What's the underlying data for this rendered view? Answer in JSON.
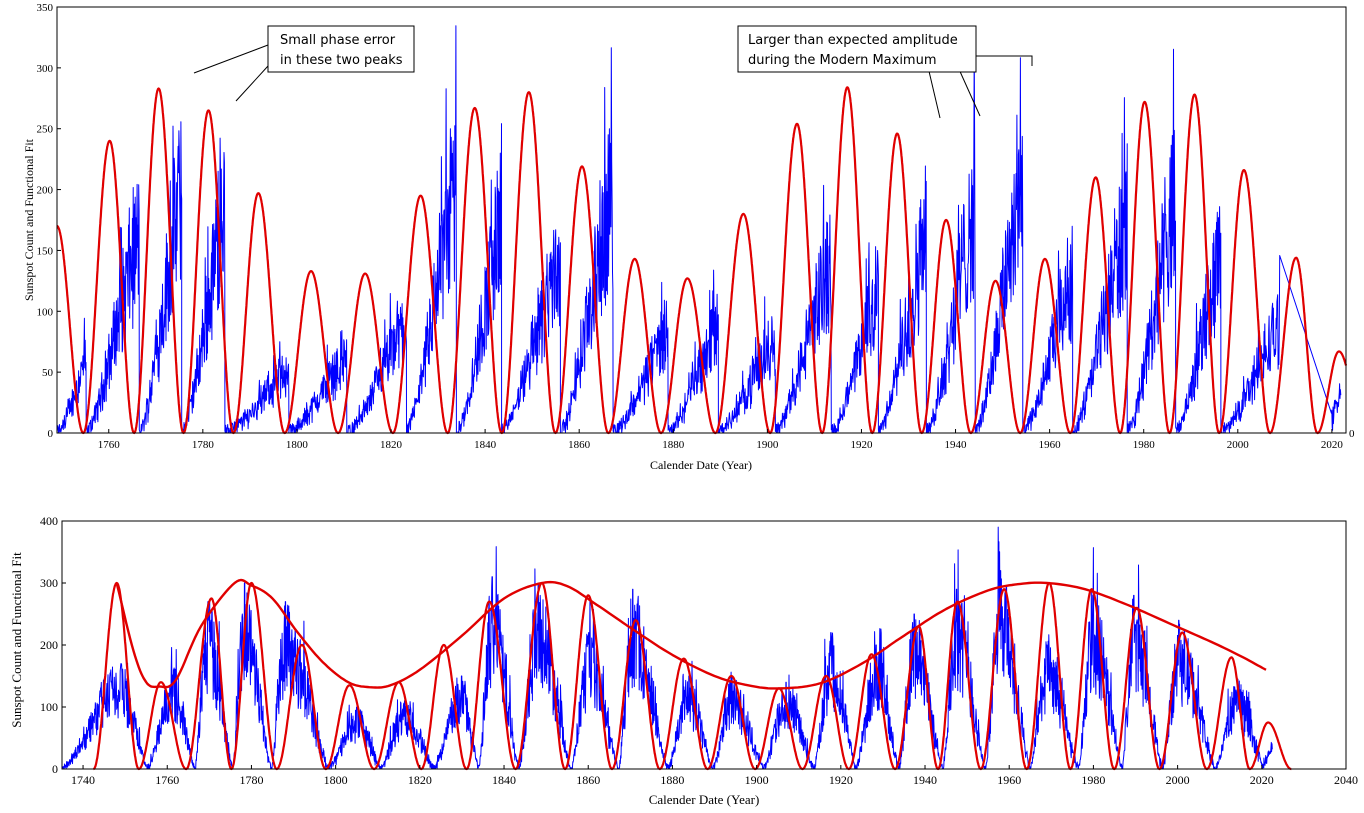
{
  "chart_data": [
    {
      "type": "line",
      "title": "",
      "xlabel": "Calender Date (Year)",
      "ylabel": "Sunspot Count and Functional Fit",
      "xlim": [
        1749,
        2023
      ],
      "ylim": [
        0,
        350
      ],
      "x_ticks": [
        "1760",
        "1780",
        "1800",
        "1820",
        "1840",
        "1860",
        "1880",
        "1900",
        "1920",
        "1940",
        "1960",
        "1980",
        "2000",
        "2020"
      ],
      "y_ticks": [
        "0",
        "50",
        "100",
        "150",
        "200",
        "250",
        "300",
        "350"
      ],
      "right_axis_label": "0",
      "colors": {
        "observed": "#0000ff",
        "fit": "#e00000"
      },
      "series": [
        {
          "key": "observed",
          "cycle_peaks": [
            [
              1761.5,
              150
            ],
            [
              1769.7,
              240
            ],
            [
              1778.4,
              300
            ],
            [
              1788.1,
              290
            ],
            [
              1805.2,
              90
            ],
            [
              1816.4,
              110
            ],
            [
              1829.9,
              160
            ],
            [
              1837.2,
              315
            ],
            [
              1848.1,
              300
            ],
            [
              1860.1,
              220
            ],
            [
              1870.6,
              295
            ],
            [
              1883.9,
              140
            ],
            [
              1894.1,
              150
            ],
            [
              1907.0,
              130
            ],
            [
              1917.6,
              220
            ],
            [
              1928.4,
              200
            ],
            [
              1937.4,
              250
            ],
            [
              1947.5,
              285
            ],
            [
              1957.9,
              335
            ],
            [
              1968.9,
              200
            ],
            [
              1979.9,
              260
            ],
            [
              1989.6,
              285
            ],
            [
              2000.3,
              245
            ],
            [
              2014.3,
              145
            ]
          ],
          "cycle_minima": [
            1755.2,
            1766.5,
            1775.5,
            1784.7,
            1798.3,
            1810.6,
            1823.3,
            1833.9,
            1843.5,
            1856.0,
            1867.2,
            1878.9,
            1889.6,
            1901.7,
            1913.6,
            1923.6,
            1933.8,
            1944.2,
            1954.3,
            1964.9,
            1976.5,
            1986.8,
            1996.4,
            2008.9,
            2019.9
          ]
        },
        {
          "key": "fit",
          "peaks": [
            [
              1749,
              170
            ],
            [
              1760.2,
              240
            ],
            [
              1770.6,
              283
            ],
            [
              1781.2,
              265
            ],
            [
              1791.8,
              197
            ],
            [
              1803.0,
              133
            ],
            [
              1814.5,
              131
            ],
            [
              1826.3,
              195
            ],
            [
              1837.8,
              267
            ],
            [
              1849.3,
              280
            ],
            [
              1860.6,
              219
            ],
            [
              1871.8,
              143
            ],
            [
              1883.0,
              127
            ],
            [
              1894.9,
              180
            ],
            [
              1906.3,
              254
            ],
            [
              1917.0,
              284
            ],
            [
              1927.6,
              246
            ],
            [
              1938.0,
              175
            ],
            [
              1948.5,
              125
            ],
            [
              1959.0,
              143
            ],
            [
              1969.8,
              210
            ],
            [
              1980.2,
              272
            ],
            [
              1990.8,
              278
            ],
            [
              2001.3,
              216
            ],
            [
              2012.4,
              144
            ],
            [
              2021.5,
              67
            ]
          ]
        }
      ],
      "annotations": [
        {
          "lines": [
            "Small phase error",
            "in these two peaks"
          ]
        },
        {
          "lines": [
            "Larger than expected amplitude",
            "during the Modern Maximum"
          ]
        }
      ]
    },
    {
      "type": "line",
      "title": "",
      "xlabel": "Calender Date (Year)",
      "ylabel": "Sunspot Count and Functional Fit",
      "xlim": [
        1735,
        2040
      ],
      "ylim": [
        0,
        400
      ],
      "x_ticks": [
        "1740",
        "1760",
        "1780",
        "1800",
        "1820",
        "1840",
        "1860",
        "1880",
        "1900",
        "1920",
        "1940",
        "1960",
        "1980",
        "2000",
        "2020",
        "2040"
      ],
      "y_ticks": [
        "0",
        "100",
        "200",
        "300",
        "400"
      ],
      "colors": {
        "observed": "#0000ff",
        "fit": "#e00000",
        "envelope": "#e00000"
      },
      "series": [
        {
          "key": "observed",
          "cycle_peaks": [
            [
              1749,
              170
            ],
            [
              1761.5,
              160
            ],
            [
              1769.7,
              270
            ],
            [
              1778.4,
              300
            ],
            [
              1788.1,
              270
            ],
            [
              1805.2,
              100
            ],
            [
              1816.4,
              110
            ],
            [
              1829.9,
              150
            ],
            [
              1837.2,
              310
            ],
            [
              1848.1,
              300
            ],
            [
              1860.1,
              220
            ],
            [
              1870.6,
              290
            ],
            [
              1883.9,
              150
            ],
            [
              1894.1,
              150
            ],
            [
              1907.0,
              140
            ],
            [
              1917.6,
              220
            ],
            [
              1928.4,
              200
            ],
            [
              1937.4,
              250
            ],
            [
              1947.5,
              290
            ],
            [
              1957.9,
              320
            ],
            [
              1968.9,
              200
            ],
            [
              1979.9,
              280
            ],
            [
              1989.6,
              280
            ],
            [
              2000.3,
              240
            ],
            [
              2014.3,
              145
            ]
          ],
          "cycle_minima": [
            1755.2,
            1766.5,
            1775.5,
            1784.7,
            1798.3,
            1810.6,
            1823.3,
            1833.9,
            1843.5,
            1856.0,
            1867.2,
            1878.9,
            1889.6,
            1901.7,
            1913.6,
            1923.6,
            1933.8,
            1944.2,
            1954.3,
            1964.9,
            1976.5,
            1986.8,
            1996.4,
            2008.9,
            2020.5
          ]
        },
        {
          "key": "fit",
          "peaks": [
            [
              1748,
              300
            ],
            [
              1758.5,
              140
            ],
            [
              1770.5,
              275
            ],
            [
              1780,
              300
            ],
            [
              1792,
              200
            ],
            [
              1803.3,
              135
            ],
            [
              1815,
              140
            ],
            [
              1825.7,
              200
            ],
            [
              1836.5,
              270
            ],
            [
              1849,
              300
            ],
            [
              1860,
              280
            ],
            [
              1871.3,
              240
            ],
            [
              1882.7,
              178
            ],
            [
              1894,
              150
            ],
            [
              1905.3,
              130
            ],
            [
              1916.5,
              150
            ],
            [
              1927.3,
              185
            ],
            [
              1938.5,
              230
            ],
            [
              1947.7,
              270
            ],
            [
              1958.8,
              290
            ],
            [
              1969.5,
              300
            ],
            [
              1979.6,
              290
            ],
            [
              1990.3,
              260
            ],
            [
              2001.1,
              220
            ],
            [
              2012.8,
              180
            ],
            [
              2021.5,
              75
            ]
          ]
        },
        {
          "key": "envelope",
          "points": [
            [
              1748,
              300
            ],
            [
              1752,
              190
            ],
            [
              1755,
              140
            ],
            [
              1758,
              133
            ],
            [
              1762,
              143
            ],
            [
              1768,
              230
            ],
            [
              1776,
              300
            ],
            [
              1780,
              296
            ],
            [
              1785,
              275
            ],
            [
              1791,
              220
            ],
            [
              1797,
              172
            ],
            [
              1803,
              140
            ],
            [
              1808,
              132
            ],
            [
              1813,
              135
            ],
            [
              1820,
              160
            ],
            [
              1830,
              215
            ],
            [
              1840,
              275
            ],
            [
              1849,
              300
            ],
            [
              1855,
              295
            ],
            [
              1862,
              265
            ],
            [
              1870,
              228
            ],
            [
              1880,
              184
            ],
            [
              1890,
              150
            ],
            [
              1898,
              135
            ],
            [
              1905,
              130
            ],
            [
              1915,
              138
            ],
            [
              1925,
              170
            ],
            [
              1935,
              215
            ],
            [
              1945,
              258
            ],
            [
              1955,
              288
            ],
            [
              1962,
              298
            ],
            [
              1969,
              300
            ],
            [
              1978,
              290
            ],
            [
              1988,
              265
            ],
            [
              1998,
              235
            ],
            [
              2008,
              205
            ],
            [
              2015,
              182
            ],
            [
              2021,
              160
            ]
          ]
        }
      ]
    }
  ]
}
